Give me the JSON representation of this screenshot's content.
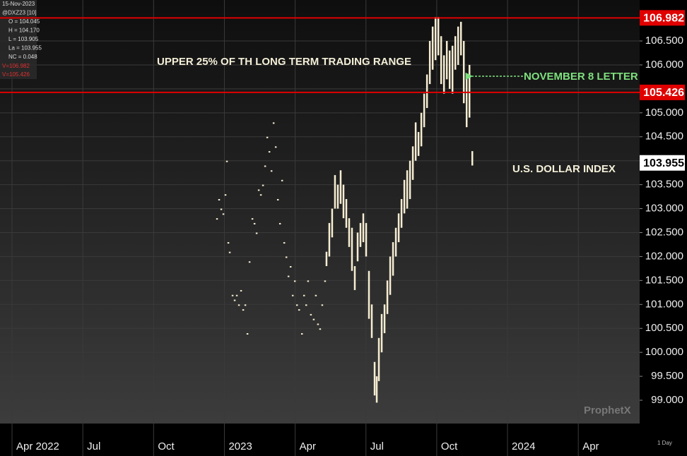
{
  "chart_data": {
    "type": "hilo",
    "info": [
      "15-Nov-2023",
      "@DXZ23 [10]",
      "O = 104.045",
      "H = 104.170",
      "L = 103.905",
      "La = 103.955",
      "NC = 0.048"
    ],
    "info_lines": [
      "V=106.982",
      "V=105.426"
    ],
    "annotations": [
      "UPPER 25% OF TH LONG TERM TRADING RANGE",
      "NOVEMBER 8 LETTER",
      "U.S. DOLLAR INDEX"
    ],
    "watermark": "ProphetX",
    "interval": "1 Day",
    "xlim": [
      2.49,
      29.6
    ],
    "ylim": [
      98.514,
      107.355
    ],
    "xticks": [
      {
        "value": 3,
        "label": "Apr 2022"
      },
      {
        "value": 6,
        "label": "Jul"
      },
      {
        "value": 9,
        "label": "Oct"
      },
      {
        "value": 12,
        "label": "2023"
      },
      {
        "value": 15,
        "label": "Apr"
      },
      {
        "value": 18,
        "label": "Jul"
      },
      {
        "value": 21,
        "label": "Oct"
      },
      {
        "value": 24,
        "label": "2024"
      },
      {
        "value": 27,
        "label": "Apr"
      }
    ],
    "yticks": [
      {
        "value": 99,
        "label": "99.000"
      },
      {
        "value": 99.5,
        "label": "99.500"
      },
      {
        "value": 100,
        "label": "100.000"
      },
      {
        "value": 100.5,
        "label": "100.500"
      },
      {
        "value": 101,
        "label": "101.000"
      },
      {
        "value": 101.5,
        "label": "101.500"
      },
      {
        "value": 102,
        "label": "102.000"
      },
      {
        "value": 102.5,
        "label": "102.500"
      },
      {
        "value": 103,
        "label": "103.000"
      },
      {
        "value": 103.5,
        "label": "103.500"
      },
      {
        "value": 104,
        "label": "104.000"
      },
      {
        "value": 104.5,
        "label": "104.500"
      },
      {
        "value": 105,
        "label": "105.000"
      },
      {
        "value": 105.5,
        "label": "105.500"
      },
      {
        "value": 106,
        "label": "106.000"
      },
      {
        "value": 106.5,
        "label": "106.500"
      }
    ],
    "hlines": [
      {
        "value": 106.982,
        "color": "#e00000"
      },
      {
        "value": 105.426,
        "color": "#e00000"
      }
    ],
    "last_price": 103.955,
    "grid": true,
    "series": [
      {
        "name": "@DXZ23",
        "color": "#f6edd2",
        "x": [
          11.68,
          11.77,
          11.86,
          11.95,
          12.04,
          12.1,
          12.16,
          12.22,
          12.34,
          12.43,
          12.52,
          12.61,
          12.7,
          12.79,
          12.88,
          12.97,
          13.06,
          13.18,
          13.27,
          13.36,
          13.45,
          13.54,
          13.63,
          13.72,
          13.81,
          13.9,
          13.99,
          14.08,
          14.17,
          14.26,
          14.35,
          14.44,
          14.53,
          14.62,
          14.71,
          14.8,
          14.89,
          14.98,
          15.07,
          15.16,
          15.28,
          15.37,
          15.46,
          15.54,
          15.66,
          15.78,
          15.87,
          15.96,
          16.05,
          16.14,
          16.26,
          16.32,
          16.44,
          16.56,
          16.68,
          16.8,
          16.92,
          17.04,
          17.16,
          17.28,
          17.4,
          17.52,
          17.64,
          17.76,
          17.88,
          18.0,
          18.12,
          18.24,
          18.36,
          18.45,
          18.54,
          18.66,
          18.78,
          18.9,
          19.02,
          19.14,
          19.26,
          19.38,
          19.5,
          19.62,
          19.74,
          19.86,
          19.98,
          20.1,
          20.22,
          20.34,
          20.46,
          20.58,
          20.7,
          20.82,
          20.94,
          21.06,
          21.18,
          21.3,
          21.42,
          21.54,
          21.66,
          21.78,
          21.9,
          22.02,
          22.14,
          22.26,
          22.38,
          22.5
        ],
        "high": [
          102.8,
          103.2,
          103.0,
          102.9,
          103.3,
          104.0,
          102.3,
          102.1,
          101.2,
          101.1,
          101.2,
          101.0,
          101.3,
          100.9,
          101.0,
          100.4,
          101.9,
          102.8,
          102.7,
          102.5,
          103.4,
          103.3,
          103.5,
          103.9,
          104.5,
          104.2,
          103.8,
          104.8,
          104.3,
          103.2,
          102.7,
          103.6,
          102.3,
          102.0,
          101.6,
          101.8,
          101.2,
          101.5,
          101.0,
          100.9,
          100.4,
          101.2,
          101.0,
          101.5,
          100.8,
          100.7,
          101.2,
          100.6,
          100.5,
          101.0,
          101.5,
          102.1,
          102.7,
          103.0,
          103.7,
          103.5,
          103.8,
          103.5,
          103.2,
          102.8,
          102.6,
          101.8,
          102.5,
          102.7,
          102.9,
          102.7,
          101.7,
          101.0,
          99.8,
          99.5,
          100.3,
          100.8,
          101.0,
          101.5,
          102.0,
          102.3,
          102.6,
          102.9,
          103.2,
          103.6,
          103.8,
          104.0,
          104.3,
          104.8,
          104.6,
          105.0,
          105.4,
          105.8,
          106.5,
          106.8,
          107.0,
          107.0,
          106.6,
          106.2,
          106.5,
          106.3,
          106.4,
          106.6,
          106.8,
          106.9,
          106.5,
          105.8,
          106.0,
          104.2
        ],
        "low": [
          102.8,
          103.2,
          103.0,
          102.9,
          103.3,
          104.0,
          102.3,
          102.1,
          101.2,
          101.1,
          101.2,
          101.0,
          101.3,
          100.9,
          101.0,
          100.4,
          101.9,
          102.8,
          102.7,
          102.5,
          103.4,
          103.3,
          103.5,
          103.9,
          104.5,
          104.2,
          103.8,
          104.8,
          104.3,
          103.2,
          102.7,
          103.6,
          102.3,
          102.0,
          101.6,
          101.8,
          101.2,
          101.5,
          101.0,
          100.9,
          100.4,
          101.2,
          101.0,
          101.5,
          100.8,
          100.7,
          101.2,
          100.6,
          100.5,
          101.0,
          101.5,
          101.8,
          102.0,
          102.4,
          103.0,
          103.0,
          103.1,
          102.8,
          102.6,
          102.2,
          101.7,
          101.3,
          101.9,
          102.2,
          102.3,
          102.0,
          100.7,
          100.3,
          99.1,
          98.95,
          99.4,
          100.0,
          100.4,
          100.8,
          101.2,
          101.6,
          102.0,
          102.3,
          102.6,
          102.9,
          103.0,
          103.2,
          103.6,
          104.0,
          104.1,
          104.3,
          104.7,
          105.1,
          105.6,
          105.9,
          106.1,
          106.2,
          105.6,
          105.4,
          105.7,
          105.5,
          105.4,
          105.9,
          106.0,
          106.2,
          105.2,
          104.7,
          104.9,
          103.9
        ]
      }
    ]
  }
}
